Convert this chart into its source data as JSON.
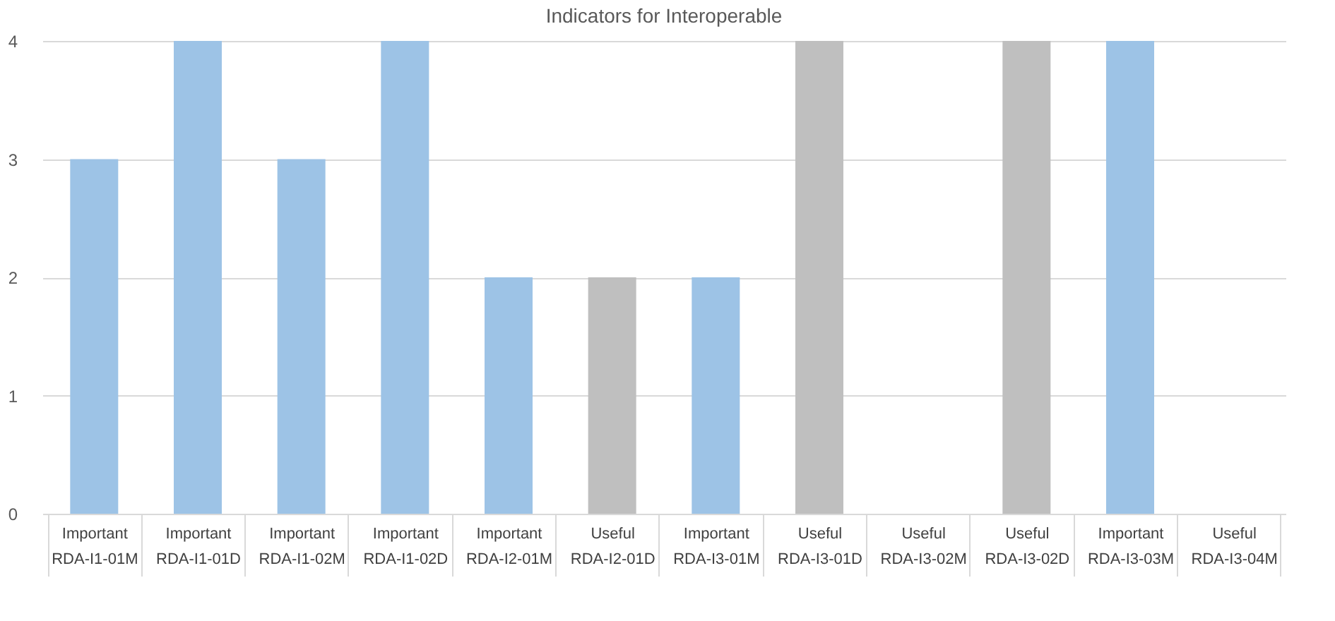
{
  "chart_data": {
    "type": "bar",
    "title": "Indicators for Interoperable",
    "categories": [
      "Important\nRDA-I1-01M",
      "Important\nRDA-I1-01D",
      "Important\nRDA-I1-02M",
      "Important\nRDA-I1-02D",
      "Important\nRDA-I2-01M",
      "Useful\nRDA-I2-01D",
      "Important\nRDA-I3-01M",
      "Useful\nRDA-I3-01D",
      "Useful\nRDA-I3-02M",
      "Useful\nRDA-I3-02D",
      "Important\nRDA-I3-03M",
      "Useful\nRDA-I3-04M"
    ],
    "values": [
      3,
      4,
      3,
      4,
      2,
      2,
      2,
      4,
      0,
      4,
      4,
      0
    ],
    "colors": [
      "#9dc3e6",
      "#9dc3e6",
      "#9dc3e6",
      "#9dc3e6",
      "#9dc3e6",
      "#bfbfbf",
      "#9dc3e6",
      "#bfbfbf",
      "#bfbfbf",
      "#bfbfbf",
      "#9dc3e6",
      "#bfbfbf"
    ],
    "ylim": [
      0,
      4
    ],
    "yticks": [
      0,
      1,
      2,
      3,
      4
    ],
    "grid": "y"
  }
}
